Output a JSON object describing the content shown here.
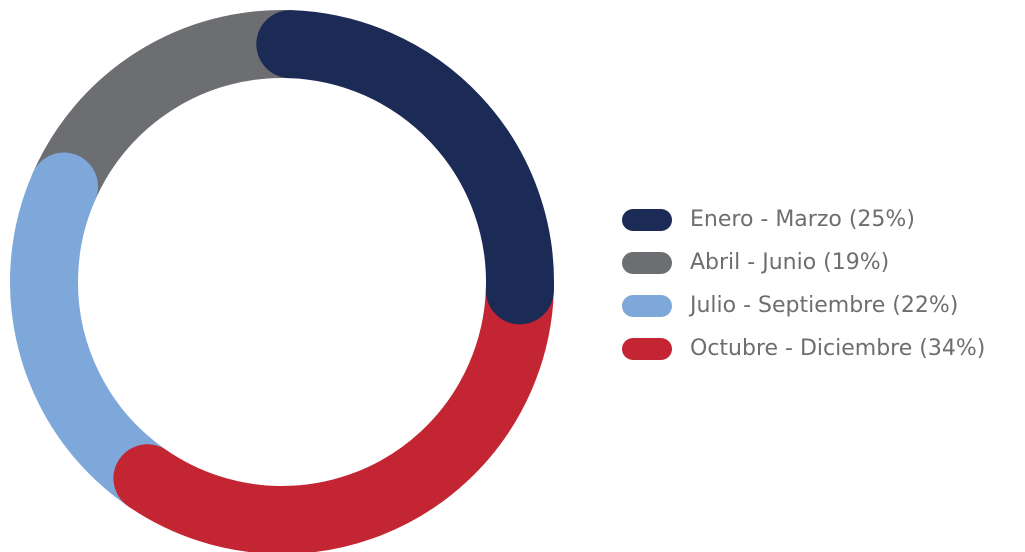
{
  "chart_data": {
    "type": "donut",
    "categories": [
      "Enero - Marzo (25%)",
      "Abril - Junio (19%)",
      "Julio - Septiembre (22%)",
      "Octubre - Diciembre (34%)"
    ],
    "values": [
      25,
      19,
      22,
      34
    ],
    "colors": [
      "#1c2a56",
      "#6d6e71",
      "#7ea8da",
      "#c42532"
    ],
    "legend": "right"
  }
}
